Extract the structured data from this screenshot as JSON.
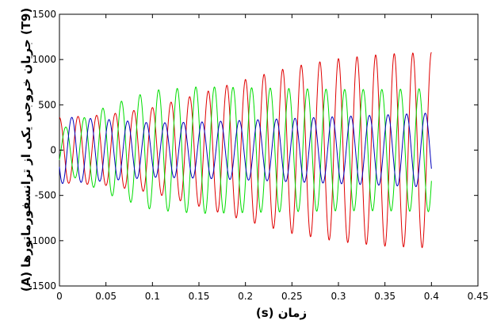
{
  "chart_data": {
    "type": "line",
    "xlabel": "زمان (s)",
    "ylabel": "(T9) جریان خروجی یکی از ترانسفورماتورها (A)",
    "xlim": [
      0,
      0.45
    ],
    "ylim": [
      -1500,
      1500
    ],
    "xticks": [
      "0",
      "0.05",
      "0.1",
      "0.15",
      "0.2",
      "0.25",
      "0.3",
      "0.35",
      "0.4",
      "0.45"
    ],
    "yticks": [
      "-1500",
      "-1000",
      "-500",
      "0",
      "500",
      "1000",
      "1500"
    ],
    "grid": false,
    "frequency_hz": 50,
    "series": [
      {
        "color": "#e00000",
        "phase_deg": 90,
        "x": [
          0,
          0.05,
          0.1,
          0.15,
          0.2,
          0.25,
          0.3,
          0.35,
          0.4
        ],
        "amplitude": [
          360,
          390,
          470,
          620,
          780,
          920,
          1010,
          1060,
          1080
        ]
      },
      {
        "color": "#00dd00",
        "phase_deg": -30,
        "x": [
          0,
          0.05,
          0.1,
          0.15,
          0.2,
          0.25,
          0.3,
          0.35,
          0.4
        ],
        "amplitude": [
          220,
          480,
          660,
          700,
          690,
          680,
          670,
          670,
          680
        ]
      },
      {
        "color": "#0000bb",
        "phase_deg": 210,
        "x": [
          0,
          0.05,
          0.1,
          0.15,
          0.2,
          0.25,
          0.3,
          0.35,
          0.4
        ],
        "amplitude": [
          370,
          340,
          300,
          310,
          330,
          350,
          370,
          390,
          410
        ]
      }
    ]
  }
}
